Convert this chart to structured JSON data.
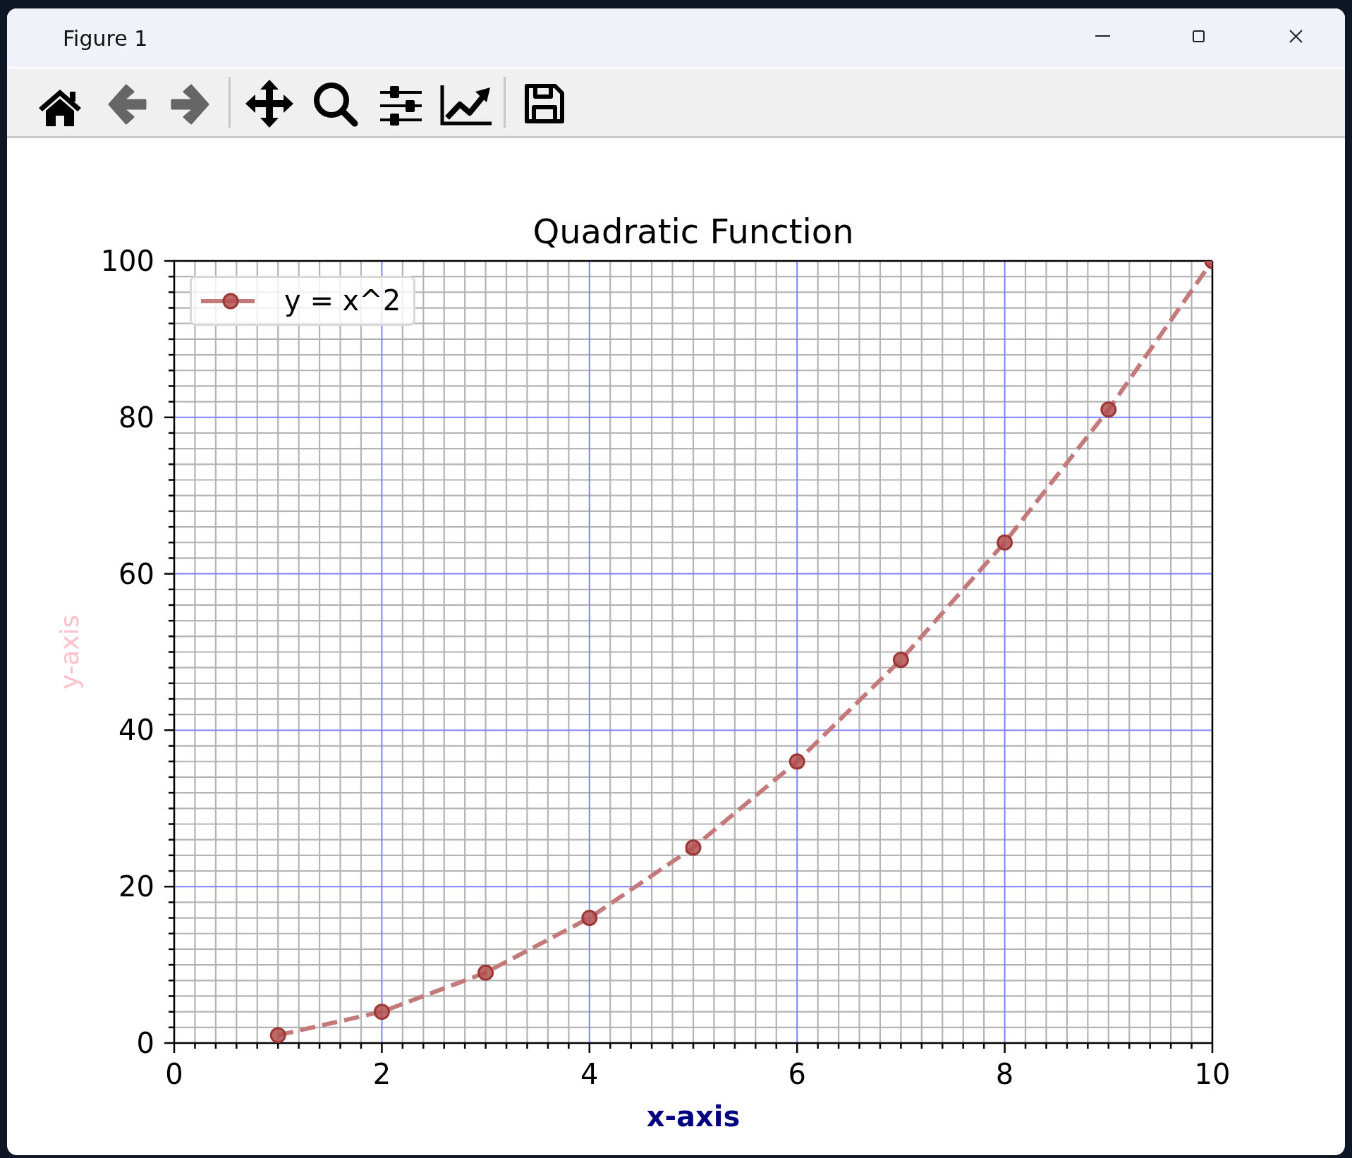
{
  "chart_data": {
    "type": "line",
    "title": "Quadratic Function",
    "xlabel": "x-axis",
    "ylabel": "y-axis",
    "annotations": [
      "Figure 1"
    ],
    "x": [
      1,
      2,
      3,
      4,
      5,
      6,
      7,
      8,
      9,
      10
    ],
    "series": [
      {
        "name": "y = x^2",
        "color": "#c47a7a",
        "values": [
          1,
          4,
          9,
          16,
          25,
          36,
          49,
          64,
          81,
          100
        ]
      }
    ],
    "xlim": [
      0,
      10
    ],
    "ylim": [
      0,
      100
    ],
    "xticks": [
      0,
      {
        "value": 0.2,
        "label": null
      },
      {
        "value": 0.4,
        "label": null
      },
      {
        "value": 0.6,
        "label": null
      },
      {
        "value": 0.8,
        "label": null
      },
      {
        "value": 1,
        "label": null
      },
      {
        "value": 1.2,
        "label": null
      },
      {
        "value": 1.4,
        "label": null
      },
      {
        "value": 1.6,
        "label": null
      },
      {
        "value": 1.8,
        "label": null
      },
      2,
      {
        "value": 2.2,
        "label": null
      },
      {
        "value": 2.4,
        "label": null
      },
      {
        "value": 2.6,
        "label": null
      },
      {
        "value": 2.8,
        "label": null
      },
      {
        "value": 3,
        "label": null
      },
      {
        "value": 3.2,
        "label": null
      },
      {
        "value": 3.4,
        "label": null
      },
      {
        "value": 3.6,
        "label": null
      },
      {
        "value": 3.8,
        "label": null
      },
      4,
      {
        "value": 4.2,
        "label": null
      },
      {
        "value": 4.4,
        "label": null
      },
      {
        "value": 4.6,
        "label": null
      },
      {
        "value": 4.8,
        "label": null
      },
      {
        "value": 5,
        "label": null
      },
      {
        "value": 5.2,
        "label": null
      },
      {
        "value": 5.4,
        "label": null
      },
      {
        "value": 5.6,
        "label": null
      },
      {
        "value": 5.8,
        "label": null
      },
      6,
      {
        "value": 6.2,
        "label": null
      },
      {
        "value": 6.4,
        "label": null
      },
      {
        "value": 6.6,
        "label": null
      },
      {
        "value": 6.8,
        "label": null
      },
      {
        "value": 7,
        "label": null
      },
      {
        "value": 7.2,
        "label": null
      },
      {
        "value": 7.4,
        "label": null
      },
      {
        "value": 7.6,
        "label": null
      },
      {
        "value": 7.8,
        "label": null
      },
      8,
      {
        "value": 8.2,
        "label": null
      },
      {
        "value": 8.4,
        "label": null
      },
      {
        "value": 8.6,
        "label": null
      },
      {
        "value": 8.8,
        "label": null
      },
      {
        "value": 9,
        "label": null
      },
      {
        "value": 9.2,
        "label": null
      },
      {
        "value": 9.4,
        "label": null
      },
      {
        "value": 9.6,
        "label": null
      },
      {
        "value": 9.8,
        "label": null
      },
      10
    ],
    "yticks": [
      0,
      {
        "value": 2,
        "label": null
      },
      {
        "value": 4,
        "label": null
      },
      {
        "value": 6,
        "label": null
      },
      {
        "value": 8,
        "label": null
      },
      {
        "value": 10,
        "label": null
      },
      {
        "value": 12,
        "label": null
      },
      {
        "value": 14,
        "label": null
      },
      {
        "value": 16,
        "label": null
      },
      {
        "value": 18,
        "label": null
      },
      20,
      {
        "value": 22,
        "label": null
      },
      {
        "value": 24,
        "label": null
      },
      {
        "value": 26,
        "label": null
      },
      {
        "value": 28,
        "label": null
      },
      {
        "value": 30,
        "label": null
      },
      {
        "value": 32,
        "label": null
      },
      {
        "value": 34,
        "label": null
      },
      {
        "value": 36,
        "label": null
      },
      {
        "value": 38,
        "label": null
      },
      40,
      {
        "value": 42,
        "label": null
      },
      {
        "value": 44,
        "label": null
      },
      {
        "value": 46,
        "label": null
      },
      {
        "value": 48,
        "label": null
      },
      {
        "value": 50,
        "label": null
      },
      {
        "value": 52,
        "label": null
      },
      {
        "value": 54,
        "label": null
      },
      {
        "value": 56,
        "label": null
      },
      {
        "value": 58,
        "label": null
      },
      60,
      {
        "value": 62,
        "label": null
      },
      {
        "value": 64,
        "label": null
      },
      {
        "value": 66,
        "label": null
      },
      {
        "value": 68,
        "label": null
      },
      {
        "value": 70,
        "label": null
      },
      {
        "value": 72,
        "label": null
      },
      {
        "value": 74,
        "label": null
      },
      {
        "value": 76,
        "label": null
      },
      {
        "value": 78,
        "label": null
      },
      80,
      {
        "value": 82,
        "label": null
      },
      {
        "value": 84,
        "label": null
      },
      {
        "value": 86,
        "label": null
      },
      {
        "value": 88,
        "label": null
      },
      {
        "value": 90,
        "label": null
      },
      {
        "value": 92,
        "label": null
      },
      {
        "value": 94,
        "label": null
      },
      {
        "value": 96,
        "label": null
      },
      {
        "value": 98,
        "label": null
      },
      100
    ],
    "grid": true,
    "legend": "top left",
    "marker": "circle",
    "line_style": "dashed"
  }
}
